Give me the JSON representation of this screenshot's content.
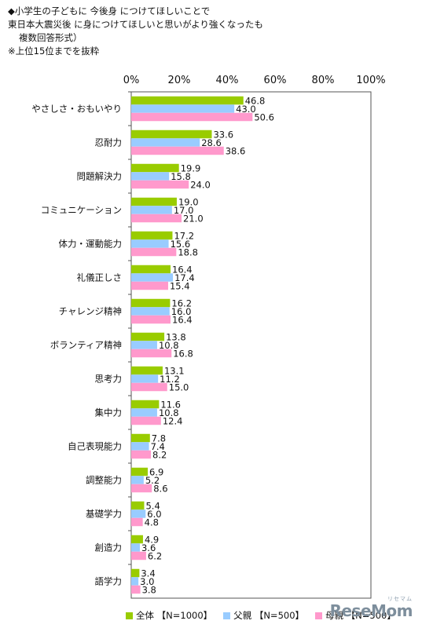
{
  "header": {
    "line1": "◆小学生の子どもに 今後身 につけてほしいことで",
    "line2": "東日本大震災後 に身につけてほしいと思いがより強くなったも",
    "line3": "複数回答形式）",
    "line4": "※上位15位までを抜粋"
  },
  "colors": {
    "all": "#99cc00",
    "father": "#99ccff",
    "mother": "#ff99cc"
  },
  "chart_data": {
    "type": "bar",
    "orientation": "horizontal",
    "categories": [
      "やさしさ・おもいやり",
      "忍耐力",
      "問題解決力",
      "コミュニケーション",
      "体力・運動能力",
      "礼儀正しさ",
      "チャレンジ精神",
      "ボランティア精神",
      "思考力",
      "集中力",
      "自己表現能力",
      "調整能力",
      "基礎学力",
      "創造力",
      "語学力"
    ],
    "series": [
      {
        "name": "全体 【N=1000】",
        "values": [
          46.8,
          33.6,
          19.9,
          19.0,
          17.2,
          16.4,
          16.2,
          13.8,
          13.1,
          11.6,
          7.8,
          6.9,
          5.4,
          4.9,
          3.4
        ]
      },
      {
        "name": "父親 【N=500】",
        "values": [
          43.0,
          28.6,
          15.8,
          17.0,
          15.6,
          17.4,
          16.0,
          10.8,
          11.2,
          10.8,
          7.4,
          5.2,
          6.0,
          3.6,
          3.0
        ]
      },
      {
        "name": "母親 【N=500】",
        "values": [
          50.6,
          38.6,
          24.0,
          21.0,
          18.8,
          15.4,
          16.4,
          16.8,
          15.0,
          12.4,
          8.2,
          8.6,
          4.8,
          6.2,
          3.8
        ]
      }
    ],
    "xlim": [
      0,
      100
    ],
    "xticks": [
      "0%",
      "20%",
      "40%",
      "60%",
      "80%",
      "100%"
    ],
    "grid": false,
    "legend": "bottom"
  },
  "watermark": {
    "logo": "ReseMom",
    "kana": "リセマム"
  }
}
